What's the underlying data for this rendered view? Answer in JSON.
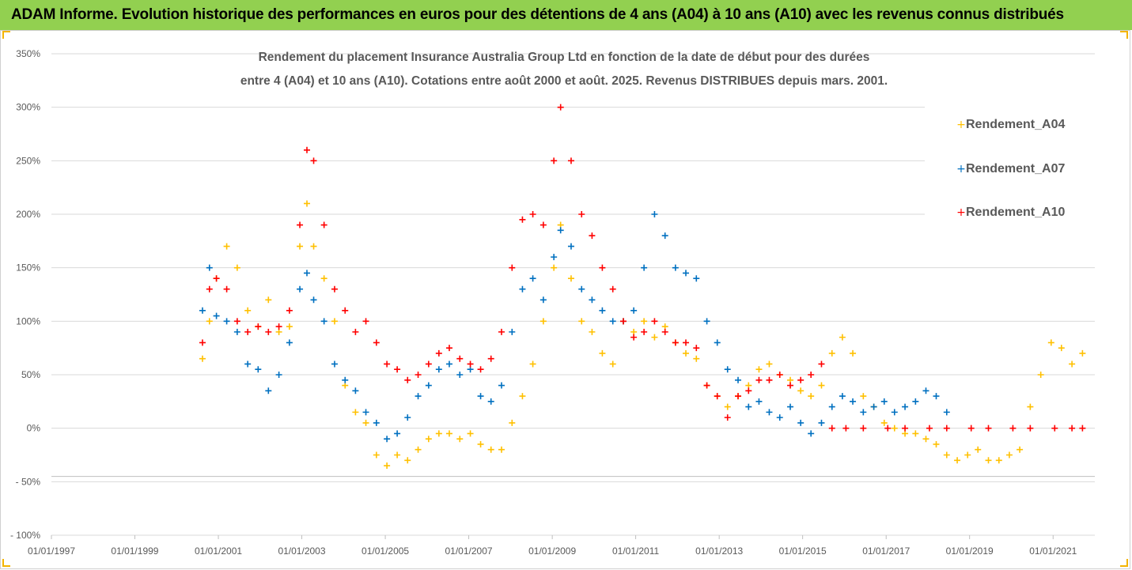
{
  "banner": {
    "text": "ADAM Informe. Evolution historique des performances en euros pour des détentions de 4 ans (A04) à 10 ans (A10) avec les revenus connus distribués",
    "background": "#92d050"
  },
  "chart_data": {
    "type": "scatter",
    "title_lines": [
      "Rendement du placement Insurance Australia Group Ltd en fonction de la date de début pour des durées",
      "entre 4 (A04) et 10 ans (A10).  Cotations entre août 2000 et août. 2025. Revenus DISTRIBUES depuis mars. 2001."
    ],
    "xlabel": "",
    "ylabel": "",
    "x_tick_labels": [
      "01/01/1997",
      "01/01/1999",
      "01/01/2001",
      "01/01/2003",
      "01/01/2005",
      "01/01/2007",
      "01/01/2009",
      "01/01/2011",
      "01/01/2013",
      "01/01/2015",
      "01/01/2017",
      "01/01/2019",
      "01/01/2021"
    ],
    "x_range": [
      "1997-01-01",
      "2022-01-01"
    ],
    "y_tick_labels": [
      "350%",
      "300%",
      "250%",
      "200%",
      "150%",
      "100%",
      "50%",
      "0%",
      "- 50%",
      "- 100%"
    ],
    "y_ticks": [
      350,
      300,
      250,
      200,
      150,
      100,
      50,
      0,
      -50,
      -100
    ],
    "ylim": [
      -100,
      350
    ],
    "y_unit": "%",
    "grid": "horizontal",
    "legend_position": "top-right",
    "marker": "+",
    "series": [
      {
        "name": "Rendement_A04",
        "color": "#ffc000",
        "points": [
          [
            "2000-08",
            65
          ],
          [
            "2000-10",
            100
          ],
          [
            "2000-12",
            140
          ],
          [
            "2001-03",
            170
          ],
          [
            "2001-06",
            150
          ],
          [
            "2001-09",
            110
          ],
          [
            "2001-12",
            95
          ],
          [
            "2002-03",
            120
          ],
          [
            "2002-06",
            90
          ],
          [
            "2002-09",
            95
          ],
          [
            "2002-12",
            170
          ],
          [
            "2003-02",
            210
          ],
          [
            "2003-04",
            170
          ],
          [
            "2003-07",
            140
          ],
          [
            "2003-10",
            100
          ],
          [
            "2004-01",
            40
          ],
          [
            "2004-04",
            15
          ],
          [
            "2004-07",
            5
          ],
          [
            "2004-10",
            -25
          ],
          [
            "2005-01",
            -35
          ],
          [
            "2005-04",
            -25
          ],
          [
            "2005-07",
            -30
          ],
          [
            "2005-10",
            -20
          ],
          [
            "2006-01",
            -10
          ],
          [
            "2006-04",
            -5
          ],
          [
            "2006-07",
            -5
          ],
          [
            "2006-10",
            -10
          ],
          [
            "2007-01",
            -5
          ],
          [
            "2007-04",
            -15
          ],
          [
            "2007-07",
            -20
          ],
          [
            "2007-10",
            -20
          ],
          [
            "2008-01",
            5
          ],
          [
            "2008-04",
            30
          ],
          [
            "2008-07",
            60
          ],
          [
            "2008-10",
            100
          ],
          [
            "2009-01",
            150
          ],
          [
            "2009-03",
            190
          ],
          [
            "2009-06",
            140
          ],
          [
            "2009-09",
            100
          ],
          [
            "2009-12",
            90
          ],
          [
            "2010-03",
            70
          ],
          [
            "2010-06",
            60
          ],
          [
            "2010-09",
            100
          ],
          [
            "2010-12",
            90
          ],
          [
            "2011-03",
            100
          ],
          [
            "2011-06",
            85
          ],
          [
            "2011-09",
            95
          ],
          [
            "2011-12",
            80
          ],
          [
            "2012-03",
            70
          ],
          [
            "2012-06",
            65
          ],
          [
            "2012-09",
            40
          ],
          [
            "2012-12",
            30
          ],
          [
            "2013-03",
            20
          ],
          [
            "2013-06",
            30
          ],
          [
            "2013-09",
            40
          ],
          [
            "2013-12",
            55
          ],
          [
            "2014-03",
            60
          ],
          [
            "2014-06",
            50
          ],
          [
            "2014-09",
            45
          ],
          [
            "2014-12",
            35
          ],
          [
            "2015-03",
            30
          ],
          [
            "2015-06",
            40
          ],
          [
            "2015-09",
            70
          ],
          [
            "2015-12",
            85
          ],
          [
            "2016-03",
            70
          ],
          [
            "2016-06",
            30
          ],
          [
            "2016-09",
            20
          ],
          [
            "2016-12",
            5
          ],
          [
            "2017-03",
            0
          ],
          [
            "2017-06",
            -5
          ],
          [
            "2017-09",
            -5
          ],
          [
            "2017-12",
            -10
          ],
          [
            "2018-03",
            -15
          ],
          [
            "2018-06",
            -25
          ],
          [
            "2018-09",
            -30
          ],
          [
            "2018-12",
            -25
          ],
          [
            "2019-03",
            -20
          ],
          [
            "2019-06",
            -30
          ],
          [
            "2019-09",
            -30
          ],
          [
            "2019-12",
            -25
          ],
          [
            "2020-03",
            -20
          ],
          [
            "2020-06",
            20
          ],
          [
            "2020-09",
            50
          ],
          [
            "2020-12",
            80
          ],
          [
            "2021-03",
            75
          ],
          [
            "2021-06",
            60
          ],
          [
            "2021-09",
            70
          ]
        ]
      },
      {
        "name": "Rendement_A07",
        "color": "#0070c0",
        "points": [
          [
            "2000-08",
            110
          ],
          [
            "2000-10",
            150
          ],
          [
            "2000-12",
            105
          ],
          [
            "2001-03",
            100
          ],
          [
            "2001-06",
            90
          ],
          [
            "2001-09",
            60
          ],
          [
            "2001-12",
            55
          ],
          [
            "2002-03",
            35
          ],
          [
            "2002-06",
            50
          ],
          [
            "2002-09",
            80
          ],
          [
            "2002-12",
            130
          ],
          [
            "2003-02",
            145
          ],
          [
            "2003-04",
            120
          ],
          [
            "2003-07",
            100
          ],
          [
            "2003-10",
            60
          ],
          [
            "2004-01",
            45
          ],
          [
            "2004-04",
            35
          ],
          [
            "2004-07",
            15
          ],
          [
            "2004-10",
            5
          ],
          [
            "2005-01",
            -10
          ],
          [
            "2005-04",
            -5
          ],
          [
            "2005-07",
            10
          ],
          [
            "2005-10",
            30
          ],
          [
            "2006-01",
            40
          ],
          [
            "2006-04",
            55
          ],
          [
            "2006-07",
            60
          ],
          [
            "2006-10",
            50
          ],
          [
            "2007-01",
            55
          ],
          [
            "2007-04",
            30
          ],
          [
            "2007-07",
            25
          ],
          [
            "2007-10",
            40
          ],
          [
            "2008-01",
            90
          ],
          [
            "2008-04",
            130
          ],
          [
            "2008-07",
            140
          ],
          [
            "2008-10",
            120
          ],
          [
            "2009-01",
            160
          ],
          [
            "2009-03",
            185
          ],
          [
            "2009-06",
            170
          ],
          [
            "2009-09",
            130
          ],
          [
            "2009-12",
            120
          ],
          [
            "2010-03",
            110
          ],
          [
            "2010-06",
            100
          ],
          [
            "2010-09",
            100
          ],
          [
            "2010-12",
            110
          ],
          [
            "2011-03",
            150
          ],
          [
            "2011-06",
            200
          ],
          [
            "2011-09",
            180
          ],
          [
            "2011-12",
            150
          ],
          [
            "2012-03",
            145
          ],
          [
            "2012-06",
            140
          ],
          [
            "2012-09",
            100
          ],
          [
            "2012-12",
            80
          ],
          [
            "2013-03",
            55
          ],
          [
            "2013-06",
            45
          ],
          [
            "2013-09",
            20
          ],
          [
            "2013-12",
            25
          ],
          [
            "2014-03",
            15
          ],
          [
            "2014-06",
            10
          ],
          [
            "2014-09",
            20
          ],
          [
            "2014-12",
            5
          ],
          [
            "2015-03",
            -5
          ],
          [
            "2015-06",
            5
          ],
          [
            "2015-09",
            20
          ],
          [
            "2015-12",
            30
          ],
          [
            "2016-03",
            25
          ],
          [
            "2016-06",
            15
          ],
          [
            "2016-09",
            20
          ],
          [
            "2016-12",
            25
          ],
          [
            "2017-03",
            15
          ],
          [
            "2017-06",
            20
          ],
          [
            "2017-09",
            25
          ],
          [
            "2017-12",
            35
          ],
          [
            "2018-03",
            30
          ],
          [
            "2018-06",
            15
          ]
        ]
      },
      {
        "name": "Rendement_A10",
        "color": "#ff0000",
        "points": [
          [
            "2000-08",
            80
          ],
          [
            "2000-10",
            130
          ],
          [
            "2000-12",
            140
          ],
          [
            "2001-03",
            130
          ],
          [
            "2001-06",
            100
          ],
          [
            "2001-09",
            90
          ],
          [
            "2001-12",
            95
          ],
          [
            "2002-03",
            90
          ],
          [
            "2002-06",
            95
          ],
          [
            "2002-09",
            110
          ],
          [
            "2002-12",
            190
          ],
          [
            "2003-02",
            260
          ],
          [
            "2003-04",
            250
          ],
          [
            "2003-07",
            190
          ],
          [
            "2003-10",
            130
          ],
          [
            "2004-01",
            110
          ],
          [
            "2004-04",
            90
          ],
          [
            "2004-07",
            100
          ],
          [
            "2004-10",
            80
          ],
          [
            "2005-01",
            60
          ],
          [
            "2005-04",
            55
          ],
          [
            "2005-07",
            45
          ],
          [
            "2005-10",
            50
          ],
          [
            "2006-01",
            60
          ],
          [
            "2006-04",
            70
          ],
          [
            "2006-07",
            75
          ],
          [
            "2006-10",
            65
          ],
          [
            "2007-01",
            60
          ],
          [
            "2007-04",
            55
          ],
          [
            "2007-07",
            65
          ],
          [
            "2007-10",
            90
          ],
          [
            "2008-01",
            150
          ],
          [
            "2008-04",
            195
          ],
          [
            "2008-07",
            200
          ],
          [
            "2008-10",
            190
          ],
          [
            "2009-01",
            250
          ],
          [
            "2009-03",
            300
          ],
          [
            "2009-06",
            250
          ],
          [
            "2009-09",
            200
          ],
          [
            "2009-12",
            180
          ],
          [
            "2010-03",
            150
          ],
          [
            "2010-06",
            130
          ],
          [
            "2010-09",
            100
          ],
          [
            "2010-12",
            85
          ],
          [
            "2011-03",
            90
          ],
          [
            "2011-06",
            100
          ],
          [
            "2011-09",
            90
          ],
          [
            "2011-12",
            80
          ],
          [
            "2012-03",
            80
          ],
          [
            "2012-06",
            75
          ],
          [
            "2012-09",
            40
          ],
          [
            "2012-12",
            30
          ],
          [
            "2013-03",
            10
          ],
          [
            "2013-06",
            30
          ],
          [
            "2013-09",
            35
          ],
          [
            "2013-12",
            45
          ],
          [
            "2014-03",
            45
          ],
          [
            "2014-06",
            50
          ],
          [
            "2014-09",
            40
          ],
          [
            "2014-12",
            45
          ],
          [
            "2015-03",
            50
          ],
          [
            "2015-06",
            60
          ],
          [
            "2015-09",
            0
          ],
          [
            "2016-01",
            0
          ],
          [
            "2016-06",
            0
          ],
          [
            "2017-01",
            0
          ],
          [
            "2017-06",
            0
          ],
          [
            "2018-01",
            0
          ],
          [
            "2018-06",
            0
          ],
          [
            "2019-01",
            0
          ],
          [
            "2019-06",
            0
          ],
          [
            "2020-01",
            0
          ],
          [
            "2020-06",
            0
          ],
          [
            "2021-01",
            0
          ],
          [
            "2021-06",
            0
          ],
          [
            "2021-09",
            0
          ]
        ]
      }
    ]
  }
}
